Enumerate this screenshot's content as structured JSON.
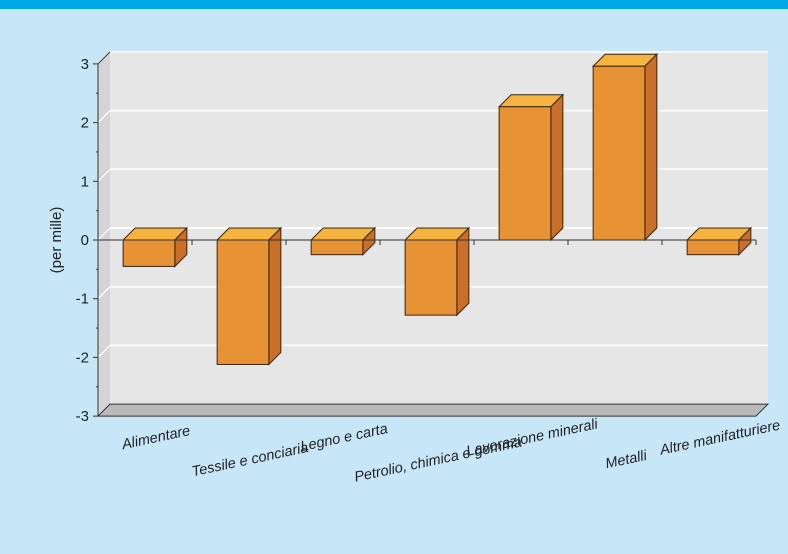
{
  "colors": {
    "background": "#c7e6f7",
    "top_bar": "#00a8e6",
    "plot_back_wall": "#e6e6e6",
    "floor": "#b9b9b9",
    "bar_front": "#e89236",
    "bar_top": "#f4b43f",
    "bar_side": "#c96f2a",
    "gridline": "#ffffff"
  },
  "chart_data": {
    "type": "bar",
    "style": "3d",
    "title": "",
    "xlabel": "",
    "ylabel": "(per mille)",
    "ylim": [
      -3,
      3
    ],
    "yticks": [
      3,
      2,
      1,
      0,
      -1,
      -2,
      -3
    ],
    "grid": true,
    "categories": [
      "Alimentare",
      "Tessile e conciaria",
      "Legno e carta",
      "Petrolio, chimica e gomma",
      "Lavorazione minerali",
      "Metalli",
      "Altre manifatturiere"
    ],
    "values": [
      -0.45,
      -2.12,
      -0.25,
      -1.28,
      2.27,
      2.96,
      -0.25
    ]
  }
}
